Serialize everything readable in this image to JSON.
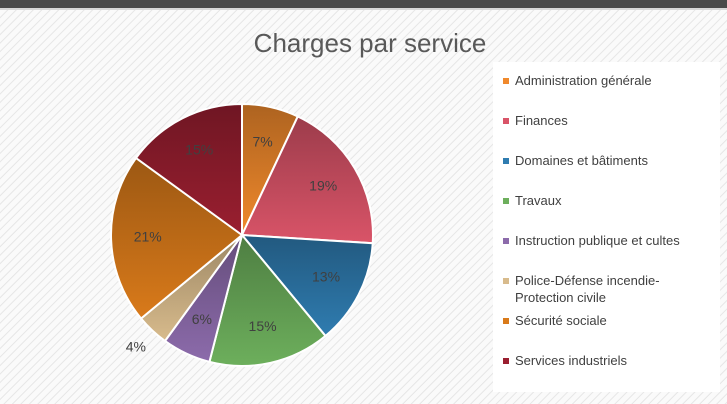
{
  "chart_data": {
    "type": "pie",
    "title": "Charges par service",
    "categories": [
      "Administration générale",
      "Finances",
      "Domaines et bâtiments",
      "Travaux",
      "Instruction publique et cultes",
      "Police-Défense incendie-Protection civile",
      "Sécurité sociale",
      "Services industriels"
    ],
    "values": [
      7,
      19,
      13,
      15,
      6,
      4,
      21,
      15
    ],
    "value_labels": [
      "7%",
      "19%",
      "13%",
      "15%",
      "6%",
      "4%",
      "21%",
      "15%"
    ],
    "colors": [
      "#f0892c",
      "#d95468",
      "#2f7cb0",
      "#6daf5c",
      "#8c6bab",
      "#d8bb8c",
      "#d97a1a",
      "#9a1f30"
    ],
    "legend": "right"
  }
}
